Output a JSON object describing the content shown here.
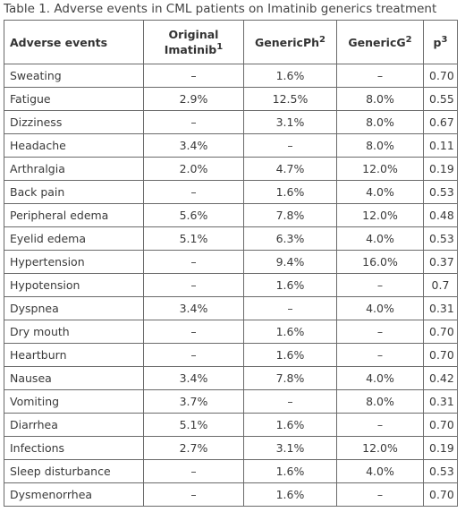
{
  "caption": "Table 1. Adverse events in CML patients on Imatinib generics treatment",
  "header": {
    "event": "Adverse events",
    "original_line1": "Original",
    "original_line2": "Imatinib",
    "original_sup": "1",
    "genericph": "GenericPh",
    "genericph_sup": "2",
    "genericg": "GenericG",
    "genericg_sup": "2",
    "p": "p",
    "p_sup": "3"
  },
  "rows": [
    {
      "event": "Sweating",
      "original": "–",
      "genericph": "1.6%",
      "genericg": "–",
      "p": "0.70"
    },
    {
      "event": "Fatigue",
      "original": "2.9%",
      "genericph": "12.5%",
      "genericg": "8.0%",
      "p": "0.55"
    },
    {
      "event": "Dizziness",
      "original": "–",
      "genericph": "3.1%",
      "genericg": "8.0%",
      "p": "0.67"
    },
    {
      "event": "Headache",
      "original": "3.4%",
      "genericph": "–",
      "genericg": "8.0%",
      "p": "0.11"
    },
    {
      "event": "Arthralgia",
      "original": "2.0%",
      "genericph": "4.7%",
      "genericg": "12.0%",
      "p": "0.19"
    },
    {
      "event": "Back pain",
      "original": "–",
      "genericph": "1.6%",
      "genericg": "4.0%",
      "p": "0.53"
    },
    {
      "event": "Peripheral edema",
      "original": "5.6%",
      "genericph": "7.8%",
      "genericg": "12.0%",
      "p": "0.48"
    },
    {
      "event": "Eyelid edema",
      "original": "5.1%",
      "genericph": "6.3%",
      "genericg": "4.0%",
      "p": "0.53"
    },
    {
      "event": "Hypertension",
      "original": "–",
      "genericph": "9.4%",
      "genericg": "16.0%",
      "p": "0.37"
    },
    {
      "event": "Hypotension",
      "original": "–",
      "genericph": "1.6%",
      "genericg": "–",
      "p": "0.7"
    },
    {
      "event": "Dyspnea",
      "original": "3.4%",
      "genericph": "–",
      "genericg": "4.0%",
      "p": "0.31"
    },
    {
      "event": "Dry mouth",
      "original": "–",
      "genericph": "1.6%",
      "genericg": "–",
      "p": "0.70"
    },
    {
      "event": "Heartburn",
      "original": "–",
      "genericph": "1.6%",
      "genericg": "–",
      "p": "0.70"
    },
    {
      "event": "Nausea",
      "original": "3.4%",
      "genericph": "7.8%",
      "genericg": "4.0%",
      "p": "0.42"
    },
    {
      "event": "Vomiting",
      "original": "3.7%",
      "genericph": "–",
      "genericg": "8.0%",
      "p": "0.31"
    },
    {
      "event": "Diarrhea",
      "original": "5.1%",
      "genericph": "1.6%",
      "genericg": "–",
      "p": "0.70"
    },
    {
      "event": "Infections",
      "original": "2.7%",
      "genericph": "3.1%",
      "genericg": "12.0%",
      "p": "0.19"
    },
    {
      "event": "Sleep disturbance",
      "original": "–",
      "genericph": "1.6%",
      "genericg": "4.0%",
      "p": "0.53"
    },
    {
      "event": "Dysmenorrhea",
      "original": "–",
      "genericph": "1.6%",
      "genericg": "–",
      "p": "0.70"
    }
  ]
}
